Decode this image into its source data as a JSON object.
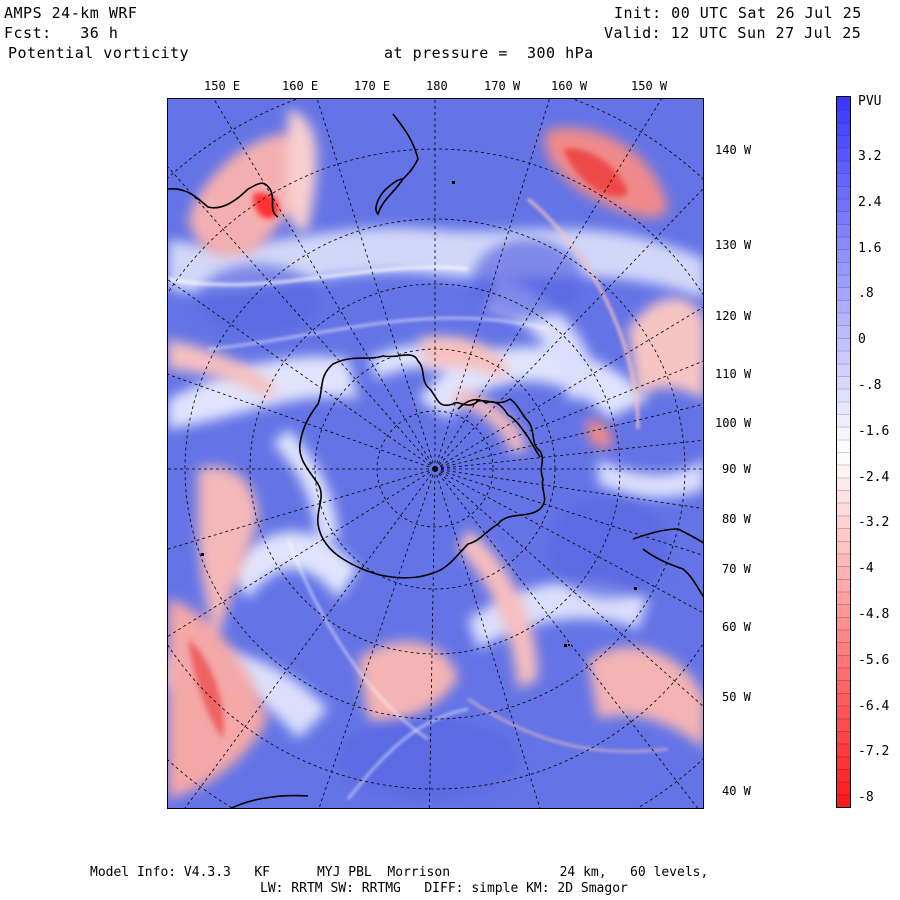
{
  "header": {
    "model": "AMPS 24-km WRF",
    "forecast": "Fcst:   36 h",
    "field": "Potential vorticity",
    "pressure": "at pressure =  300 hPa",
    "init": "Init: 00 UTC Sat 26 Jul 25",
    "valid": "Valid: 12 UTC Sun 27 Jul 25"
  },
  "map": {
    "top_labels": [
      "150 E",
      "160 E",
      "170 E",
      "180",
      "170 W",
      "160 W",
      "150 W"
    ],
    "right_labels": [
      "140 W",
      "130 W",
      "120 W",
      "110 W",
      "100 W",
      "90 W",
      "80 W",
      "70 W",
      "60 W",
      "50 W",
      "40 W"
    ],
    "colors": {
      "high_pv": "#3a3aff",
      "base_blue": "#6474e6",
      "neutral": "#ffffff",
      "red_light": "#f4b0b0",
      "red_strong": "#ff1a1a"
    }
  },
  "colorbar": {
    "unit": "PVU",
    "ticks": [
      "3.2",
      "2.4",
      "1.6",
      ".8",
      "0",
      "-.8",
      "-1.6",
      "-2.4",
      "-3.2",
      "-4",
      "-4.8",
      "-5.6",
      "-6.4",
      "-7.2",
      "-8"
    ]
  },
  "footer": {
    "line1": "Model Info: V4.3.3   KF      MYJ PBL  Morrison              24 km,   60 levels,",
    "line2": "LW: RRTM SW: RRTMG   DIFF: simple KM: 2D Smagor"
  }
}
